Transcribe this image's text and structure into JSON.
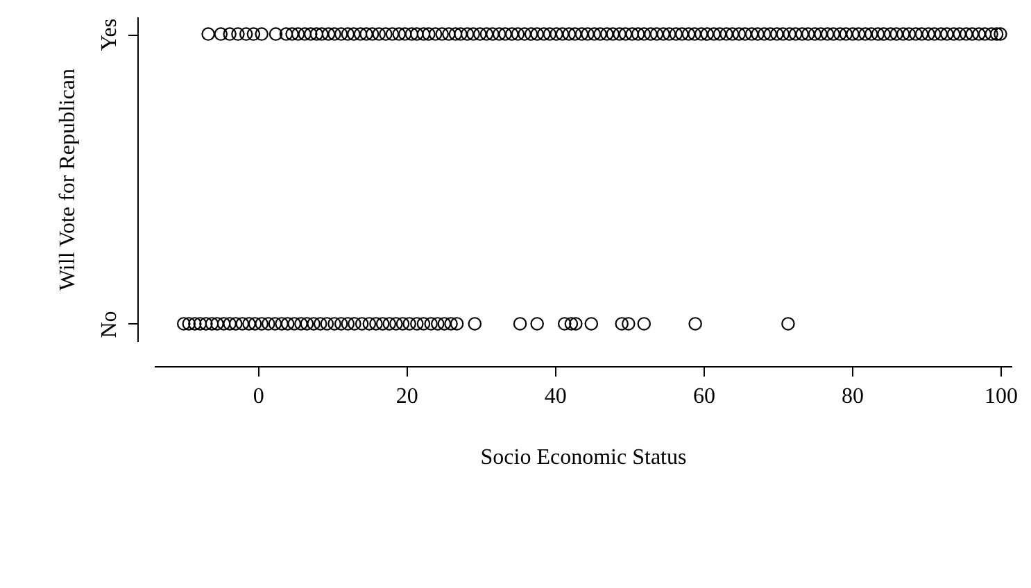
{
  "chart_data": {
    "type": "scatter",
    "orientation": "horizontal",
    "xlabel": "Socio Economic Status",
    "ylabel": "Will Vote for Republican",
    "categories": [
      "Yes",
      "No"
    ],
    "xlim": [
      -14,
      101.5
    ],
    "xticks": [
      0,
      20,
      40,
      60,
      80,
      100
    ],
    "grid": false,
    "marker": "circle",
    "series": [
      {
        "color": "#000000",
        "x": [
          "Yes",
          "Yes",
          "Yes",
          "Yes",
          "Yes",
          "Yes",
          "Yes",
          "Yes",
          "Yes",
          "Yes",
          "Yes",
          "Yes",
          "Yes",
          "Yes",
          "Yes",
          "Yes",
          "Yes",
          "Yes",
          "Yes",
          "Yes",
          "Yes",
          "Yes",
          "Yes",
          "Yes",
          "Yes",
          "Yes",
          "Yes",
          "Yes",
          "Yes",
          "Yes",
          "Yes",
          "Yes",
          "Yes",
          "Yes",
          "Yes",
          "Yes",
          "Yes",
          "Yes",
          "Yes",
          "Yes",
          "Yes",
          "Yes",
          "Yes",
          "Yes",
          "Yes",
          "Yes",
          "Yes",
          "Yes",
          "Yes",
          "Yes",
          "Yes",
          "Yes",
          "Yes",
          "Yes",
          "Yes",
          "Yes",
          "Yes",
          "Yes",
          "Yes",
          "Yes",
          "Yes",
          "Yes",
          "Yes",
          "Yes",
          "Yes",
          "Yes",
          "Yes",
          "Yes",
          "Yes",
          "Yes",
          "Yes",
          "Yes",
          "Yes",
          "Yes",
          "Yes",
          "Yes",
          "Yes",
          "Yes",
          "Yes",
          "Yes",
          "Yes",
          "Yes",
          "Yes",
          "Yes",
          "Yes",
          "Yes",
          "Yes",
          "Yes",
          "Yes",
          "Yes",
          "Yes",
          "Yes",
          "Yes",
          "Yes",
          "Yes",
          "Yes",
          "Yes",
          "Yes",
          "Yes",
          "Yes",
          "Yes",
          "Yes",
          "Yes",
          "Yes",
          "Yes",
          "Yes",
          "Yes",
          "Yes",
          "Yes",
          "Yes",
          "Yes",
          "Yes",
          "Yes",
          "Yes",
          "Yes",
          "Yes",
          "Yes",
          "Yes",
          "Yes",
          "Yes",
          "Yes",
          "Yes",
          "Yes"
        ],
        "values": [
          -6.7,
          -5,
          -3.8,
          -2.7,
          -1.6,
          -0.6,
          0.5,
          2.4,
          3.8,
          4.6,
          5.4,
          6.3,
          7.1,
          7.9,
          8.6,
          9.5,
          10.3,
          11.2,
          12.1,
          12.9,
          13.8,
          14.6,
          15.4,
          16.3,
          17.2,
          18.1,
          19,
          19.8,
          20.7,
          21.4,
          22.3,
          23,
          23.9,
          24.8,
          25.7,
          26.6,
          27.3,
          28.2,
          29,
          29.9,
          30.8,
          31.6,
          32.5,
          33.3,
          34.2,
          35,
          35.9,
          36.8,
          37.6,
          38.5,
          39.3,
          40.2,
          41,
          41.9,
          42.7,
          43.6,
          44.4,
          45.3,
          46.1,
          47,
          47.8,
          48.7,
          49.5,
          50.4,
          51.2,
          52,
          52.9,
          53.7,
          54.6,
          55.4,
          56.3,
          57.1,
          58,
          58.8,
          59.7,
          60.5,
          61.4,
          62.2,
          63.1,
          63.9,
          64.8,
          65.6,
          66.5,
          67.3,
          68.2,
          69,
          69.9,
          70.7,
          71.6,
          72.4,
          73.3,
          74.1,
          75,
          75.8,
          76.7,
          77.5,
          78.4,
          79.2,
          80.1,
          80.9,
          81.8,
          82.6,
          83.5,
          84.3,
          85.2,
          86,
          86.9,
          87.7,
          88.6,
          89.4,
          90.3,
          91.1,
          92,
          92.8,
          93.7,
          94.5,
          95.4,
          96.2,
          97.1,
          97.9,
          98.8,
          99.5,
          100
        ]
      },
      {
        "color": "#000000",
        "x": [
          "No",
          "No",
          "No",
          "No",
          "No",
          "No",
          "No",
          "No",
          "No",
          "No",
          "No",
          "No",
          "No",
          "No",
          "No",
          "No",
          "No",
          "No",
          "No",
          "No",
          "No",
          "No",
          "No",
          "No",
          "No",
          "No",
          "No",
          "No",
          "No",
          "No",
          "No",
          "No",
          "No",
          "No",
          "No",
          "No",
          "No",
          "No",
          "No",
          "No",
          "No",
          "No",
          "No",
          "No",
          "No",
          "No",
          "No",
          "No",
          "No",
          "No",
          "No",
          "No",
          "No",
          "No",
          "No"
        ],
        "values": [
          -10,
          -9.3,
          -8.5,
          -7.8,
          -7,
          -6.2,
          -5.5,
          -4.6,
          -3.8,
          -3,
          -2.1,
          -1.2,
          -0.4,
          0.5,
          1.4,
          2.3,
          3.2,
          4,
          4.9,
          5.8,
          6.6,
          7.5,
          8.4,
          9.3,
          10.3,
          11.2,
          12.1,
          13,
          14,
          15,
          15.9,
          16.8,
          17.7,
          18.6,
          19.5,
          20.4,
          21.4,
          22.3,
          23.3,
          24.2,
          25.1,
          26,
          26.8,
          29.2,
          35.3,
          37.6,
          41.3,
          42.2,
          42.8,
          44.9,
          49,
          49.9,
          52,
          58.9,
          71.4
        ]
      }
    ]
  }
}
